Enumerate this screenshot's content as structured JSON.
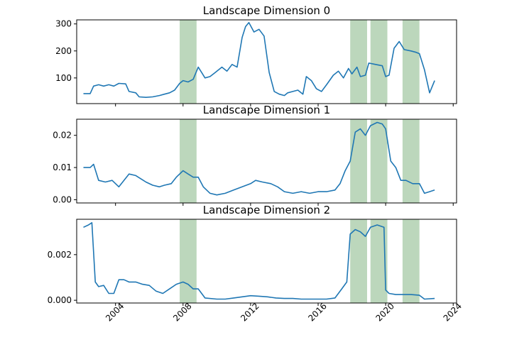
{
  "chart_data": [
    {
      "type": "line",
      "title": "Landscape Dimension 0",
      "xlim": [
        2001.7,
        2024.2
      ],
      "ylim": [
        5,
        315
      ],
      "yticks": [
        100,
        200,
        300
      ],
      "yticklabels": [
        "100",
        "200",
        "300"
      ],
      "shaded_regions": [
        [
          2007.8,
          2008.8
        ],
        [
          2017.9,
          2018.9
        ],
        [
          2019.1,
          2020.1
        ],
        [
          2021.0,
          2022.0
        ]
      ],
      "series": [
        {
          "color": "#1f77b4",
          "x": [
            2002.1,
            2002.5,
            2002.7,
            2003.0,
            2003.3,
            2003.6,
            2003.9,
            2004.2,
            2004.6,
            2004.8,
            2005.2,
            2005.4,
            2005.8,
            2006.2,
            2006.6,
            2006.9,
            2007.2,
            2007.5,
            2007.8,
            2008.0,
            2008.3,
            2008.6,
            2008.9,
            2009.1,
            2009.3,
            2009.6,
            2009.9,
            2010.3,
            2010.6,
            2010.9,
            2011.2,
            2011.5,
            2011.7,
            2011.9,
            2012.2,
            2012.5,
            2012.8,
            2013.1,
            2013.4,
            2013.7,
            2014.0,
            2014.2,
            2014.5,
            2014.8,
            2015.1,
            2015.3,
            2015.6,
            2015.9,
            2016.2,
            2016.5,
            2016.9,
            2017.2,
            2017.5,
            2017.8,
            2018.0,
            2018.3,
            2018.5,
            2018.8,
            2019.0,
            2019.4,
            2019.8,
            2020.0,
            2020.2,
            2020.5,
            2020.8,
            2021.1,
            2021.5,
            2021.8,
            2022.0,
            2022.3,
            2022.6,
            2022.9
          ],
          "y": [
            42,
            42,
            70,
            75,
            70,
            75,
            70,
            80,
            78,
            50,
            45,
            30,
            28,
            30,
            35,
            40,
            45,
            55,
            80,
            90,
            85,
            95,
            140,
            120,
            100,
            105,
            120,
            140,
            125,
            150,
            140,
            250,
            290,
            305,
            270,
            280,
            255,
            120,
            50,
            40,
            35,
            45,
            50,
            55,
            40,
            105,
            90,
            60,
            50,
            75,
            110,
            125,
            100,
            135,
            115,
            140,
            105,
            110,
            155,
            150,
            145,
            105,
            110,
            210,
            235,
            205,
            200,
            195,
            190,
            130,
            45,
            90
          ]
        }
      ]
    },
    {
      "type": "line",
      "title": "Landscape Dimension 1",
      "xlim": [
        2001.7,
        2024.2
      ],
      "ylim": [
        -0.001,
        0.025
      ],
      "yticks": [
        0.0,
        0.01,
        0.02
      ],
      "yticklabels": [
        "0.00",
        "0.01",
        "0.02"
      ],
      "shaded_regions": [
        [
          2007.8,
          2008.8
        ],
        [
          2017.9,
          2018.9
        ],
        [
          2019.1,
          2020.1
        ],
        [
          2021.0,
          2022.0
        ]
      ],
      "series": [
        {
          "color": "#1f77b4",
          "x": [
            2002.1,
            2002.5,
            2002.7,
            2003.0,
            2003.4,
            2003.8,
            2004.2,
            2004.8,
            2005.2,
            2005.8,
            2006.2,
            2006.6,
            2006.9,
            2007.3,
            2007.6,
            2008.0,
            2008.3,
            2008.6,
            2008.9,
            2009.2,
            2009.6,
            2010.0,
            2010.5,
            2011.0,
            2011.5,
            2012.0,
            2012.3,
            2012.7,
            2013.2,
            2013.6,
            2014.0,
            2014.5,
            2015.0,
            2015.5,
            2016.0,
            2016.5,
            2017.0,
            2017.3,
            2017.6,
            2017.9,
            2018.2,
            2018.5,
            2018.8,
            2019.1,
            2019.5,
            2019.8,
            2020.0,
            2020.3,
            2020.6,
            2020.9,
            2021.2,
            2021.6,
            2022.0,
            2022.3,
            2022.6,
            2022.9
          ],
          "y": [
            0.01,
            0.01,
            0.011,
            0.006,
            0.0055,
            0.006,
            0.004,
            0.008,
            0.0075,
            0.0055,
            0.0045,
            0.004,
            0.0045,
            0.005,
            0.007,
            0.009,
            0.008,
            0.007,
            0.007,
            0.004,
            0.002,
            0.0015,
            0.002,
            0.003,
            0.004,
            0.005,
            0.006,
            0.0055,
            0.005,
            0.004,
            0.0025,
            0.002,
            0.0025,
            0.002,
            0.0025,
            0.0025,
            0.003,
            0.005,
            0.009,
            0.012,
            0.021,
            0.022,
            0.02,
            0.023,
            0.024,
            0.0235,
            0.022,
            0.012,
            0.01,
            0.006,
            0.006,
            0.005,
            0.005,
            0.002,
            0.0025,
            0.003
          ]
        }
      ]
    },
    {
      "type": "line",
      "title": "Landscape Dimension 2",
      "xlim": [
        2001.7,
        2024.2
      ],
      "ylim": [
        -0.00012,
        0.00355
      ],
      "yticks": [
        0.0,
        0.002
      ],
      "yticklabels": [
        "0.000",
        "0.002"
      ],
      "shaded_regions": [
        [
          2007.8,
          2008.8
        ],
        [
          2017.9,
          2018.9
        ],
        [
          2019.1,
          2020.1
        ],
        [
          2021.0,
          2022.0
        ]
      ],
      "series": [
        {
          "color": "#1f77b4",
          "x": [
            2002.1,
            2002.4,
            2002.6,
            2002.8,
            2003.0,
            2003.3,
            2003.6,
            2003.9,
            2004.2,
            2004.5,
            2004.8,
            2005.2,
            2005.6,
            2006.0,
            2006.4,
            2006.8,
            2007.2,
            2007.6,
            2008.0,
            2008.3,
            2008.6,
            2008.9,
            2009.3,
            2010.0,
            2010.5,
            2011.0,
            2011.5,
            2012.0,
            2012.5,
            2013.0,
            2013.5,
            2014.0,
            2014.5,
            2015.0,
            2015.5,
            2016.0,
            2016.5,
            2017.0,
            2017.4,
            2017.7,
            2017.9,
            2018.2,
            2018.5,
            2018.8,
            2019.1,
            2019.5,
            2019.9,
            2020.0,
            2020.2,
            2020.6,
            2021.0,
            2021.5,
            2022.0,
            2022.3,
            2022.9
          ],
          "y": [
            0.0032,
            0.0033,
            0.0034,
            0.0008,
            0.0006,
            0.00065,
            0.0003,
            0.0003,
            0.0009,
            0.0009,
            0.0008,
            0.0008,
            0.0007,
            0.00065,
            0.0004,
            0.0003,
            0.0005,
            0.0007,
            0.0008,
            0.0007,
            0.0005,
            0.0005,
            0.0001,
            5e-05,
            5e-05,
            0.0001,
            0.00015,
            0.0002,
            0.00018,
            0.00015,
            0.0001,
            8e-05,
            8e-05,
            5e-05,
            5e-05,
            5e-05,
            5e-05,
            0.0001,
            0.0005,
            0.0008,
            0.0029,
            0.0031,
            0.003,
            0.0028,
            0.0032,
            0.0033,
            0.0032,
            0.00045,
            0.0003,
            0.00025,
            0.00025,
            0.00025,
            0.00022,
            5e-05,
            8e-05
          ]
        }
      ]
    }
  ],
  "x_axis": {
    "ticks": [
      2004,
      2008,
      2012,
      2016,
      2020,
      2024
    ],
    "ticklabels": [
      "2004",
      "2008",
      "2012",
      "2016",
      "2020",
      "2024"
    ],
    "tick_rotation_deg": 45
  }
}
